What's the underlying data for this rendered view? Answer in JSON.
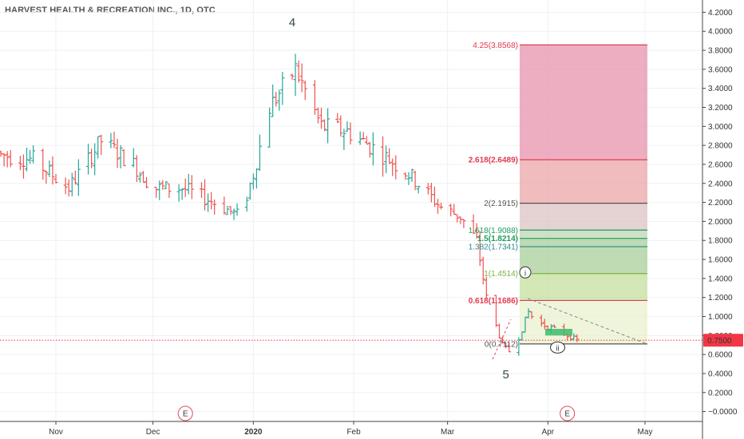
{
  "header": {
    "title": "HARVEST HEALTH & RECREATION INC., 1D, OTC"
  },
  "colors": {
    "up": "#26a69a",
    "down": "#ef5350",
    "price_line": "#f23645",
    "grid": "#eef0f3",
    "fib_red": "#e03a4e",
    "fib_green": "#1e9c5a",
    "fib_teal": "#2a8a87"
  },
  "chart_data": {
    "type": "ohlc",
    "title": "HARVEST HEALTH & RECREATION INC., 1D, OTC",
    "ylim": [
      -0.1,
      4.3
    ],
    "y_ticks": [
      "4.2000",
      "4.0000",
      "3.8000",
      "3.6000",
      "3.4000",
      "3.2000",
      "3.0000",
      "2.8000",
      "2.6000",
      "2.4000",
      "2.2000",
      "2.0000",
      "1.8000",
      "1.6000",
      "1.4000",
      "1.2000",
      "1.0000",
      "0.8000",
      "0.6000",
      "0.4000",
      "0.2000",
      "−0.0000"
    ],
    "x_ticks": [
      "Nov",
      "Dec",
      "2020",
      "Feb",
      "Mar",
      "Apr",
      "May"
    ],
    "last_price": {
      "value": 0.75,
      "label": "0.7500"
    },
    "earnings_markers": [
      {
        "date": "2019-12-11",
        "label": "E"
      },
      {
        "date": "2020-04-07",
        "label": "E"
      }
    ],
    "fib_levels": [
      {
        "ratio": "4.25",
        "price": 3.8568,
        "label": "4.25(3.8568)",
        "color": "#e03a4e"
      },
      {
        "ratio": "2.618",
        "price": 2.6489,
        "label": "2.618(2.6489)",
        "color": "#e03a4e"
      },
      {
        "ratio": "2",
        "price": 2.1915,
        "label": "2(2.1915)",
        "color": "#555555"
      },
      {
        "ratio": "1.618",
        "price": 1.9088,
        "label": "1.618(1.9088)",
        "color": "#1e9c5a"
      },
      {
        "ratio": "1.5",
        "price": 1.8214,
        "label": "1.5(1.8214)",
        "color": "#1e9c5a"
      },
      {
        "ratio": "1.382",
        "price": 1.7341,
        "label": "1.382(1.7341)",
        "color": "#2a8a87"
      },
      {
        "ratio": "1",
        "price": 1.4514,
        "label": "1(1.4514)",
        "color": "#7cb342"
      },
      {
        "ratio": "0.618",
        "price": 1.1686,
        "label": "0.618(1.1686)",
        "color": "#e03a4e"
      },
      {
        "ratio": "0",
        "price": 0.7112,
        "label": "0(0.7112)",
        "color": "#555555"
      }
    ],
    "wave_labels": [
      {
        "text": "4",
        "date": "2020-01-13",
        "price": 4.05
      },
      {
        "text": "5",
        "date": "2020-03-19",
        "price": 0.35
      },
      {
        "text": "i",
        "date": "2020-03-25",
        "price": 1.43,
        "circled": true
      },
      {
        "text": "ii",
        "date": "2020-04-04",
        "price": 0.64,
        "circled": true
      }
    ]
  }
}
